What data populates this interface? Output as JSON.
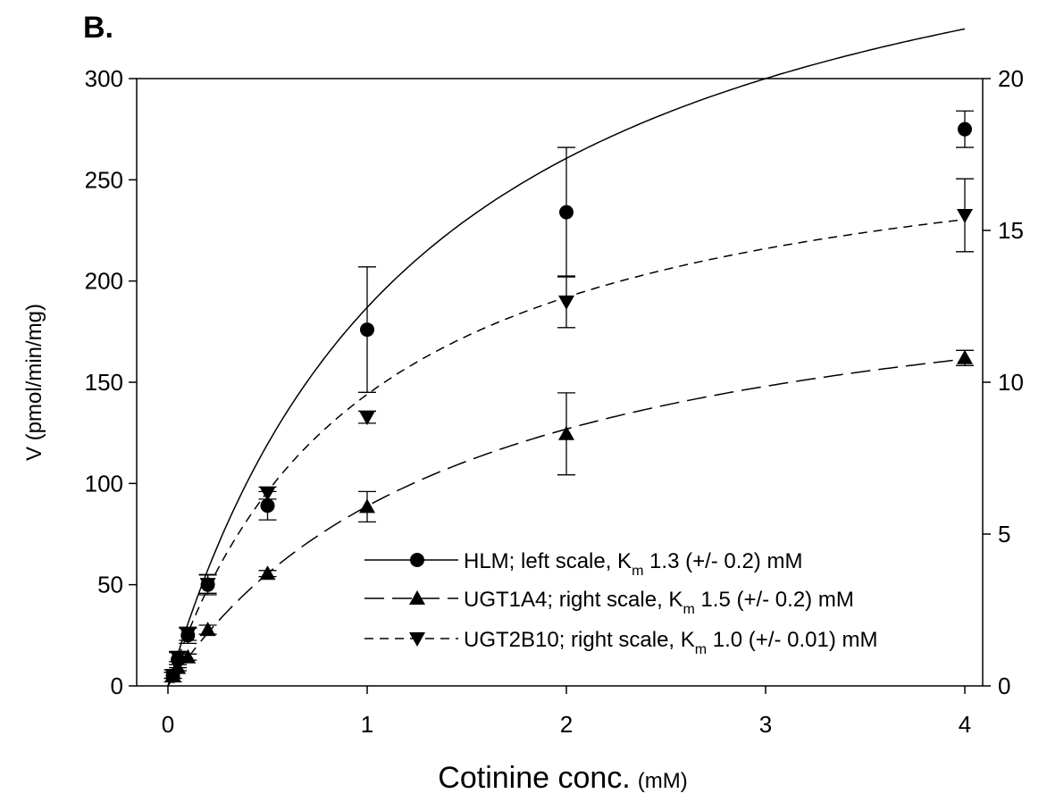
{
  "chart_data": {
    "type": "scatter",
    "panel_label": "B.",
    "xlabel": "Cotinine conc.",
    "xlabel_unit": "(mM)",
    "ylabel": "V (pmol/min/mg)",
    "xlim": [
      0,
      4
    ],
    "ylim_left": [
      0,
      300
    ],
    "ylim_right": [
      0,
      20
    ],
    "x_ticks": [
      0,
      1,
      2,
      3,
      4
    ],
    "y_ticks_left": [
      0,
      50,
      100,
      150,
      200,
      250,
      300
    ],
    "y_ticks_right": [
      0,
      5,
      10,
      15,
      20
    ],
    "legend_position": "lower-right",
    "grid": false,
    "series": [
      {
        "name": "HLM; left scale, Km 1.3 (+/- 0.2) mM",
        "legend": {
          "prefix": "HLM; left scale, K",
          "sub": "m",
          "suffix": " 1.3 (+/- 0.2) mM"
        },
        "axis": "left",
        "marker": "circle",
        "line": "solid",
        "fit": {
          "vmax": 430,
          "km": 1.3
        },
        "x": [
          0.025,
          0.05,
          0.1,
          0.2,
          0.5,
          1,
          2,
          4
        ],
        "y": [
          5,
          13,
          25,
          50,
          89,
          176,
          234,
          275
        ],
        "err": [
          3,
          4,
          4,
          5,
          7,
          31,
          32,
          9
        ]
      },
      {
        "name": "UGT1A4; right scale, Km 1.5 (+/- 0.2) mM",
        "legend": {
          "prefix": "UGT1A4; right scale, K",
          "sub": "m",
          "suffix": " 1.5 (+/- 0.2) mM"
        },
        "axis": "right",
        "marker": "triangle-up",
        "line": "long-dash",
        "fit": {
          "vmax": 14.8,
          "km": 1.5
        },
        "x": [
          0.025,
          0.05,
          0.1,
          0.2,
          0.5,
          1,
          2,
          4
        ],
        "y": [
          0.35,
          0.6,
          0.95,
          1.85,
          3.7,
          5.9,
          8.3,
          10.8
        ],
        "err": [
          0.1,
          0.1,
          0.1,
          0.15,
          0.1,
          0.5,
          1.35,
          0.25
        ]
      },
      {
        "name": "UGT2B10; right scale, Km 1.0 (+/- 0.01) mM",
        "legend": {
          "prefix": "UGT2B10; right scale, K",
          "sub": "m",
          "suffix": " 1.0 (+/- 0.01) mM"
        },
        "axis": "right",
        "marker": "triangle-down",
        "line": "short-dash",
        "fit": {
          "vmax": 19.2,
          "km": 1.0
        },
        "x": [
          0.025,
          0.05,
          0.1,
          0.2,
          0.5,
          1,
          2,
          4
        ],
        "y": [
          0.35,
          0.95,
          1.7,
          3.35,
          6.35,
          8.85,
          12.65,
          15.5
        ],
        "err": [
          0.1,
          0.15,
          0.2,
          0.3,
          0.2,
          0.2,
          0.85,
          1.2
        ]
      }
    ]
  }
}
